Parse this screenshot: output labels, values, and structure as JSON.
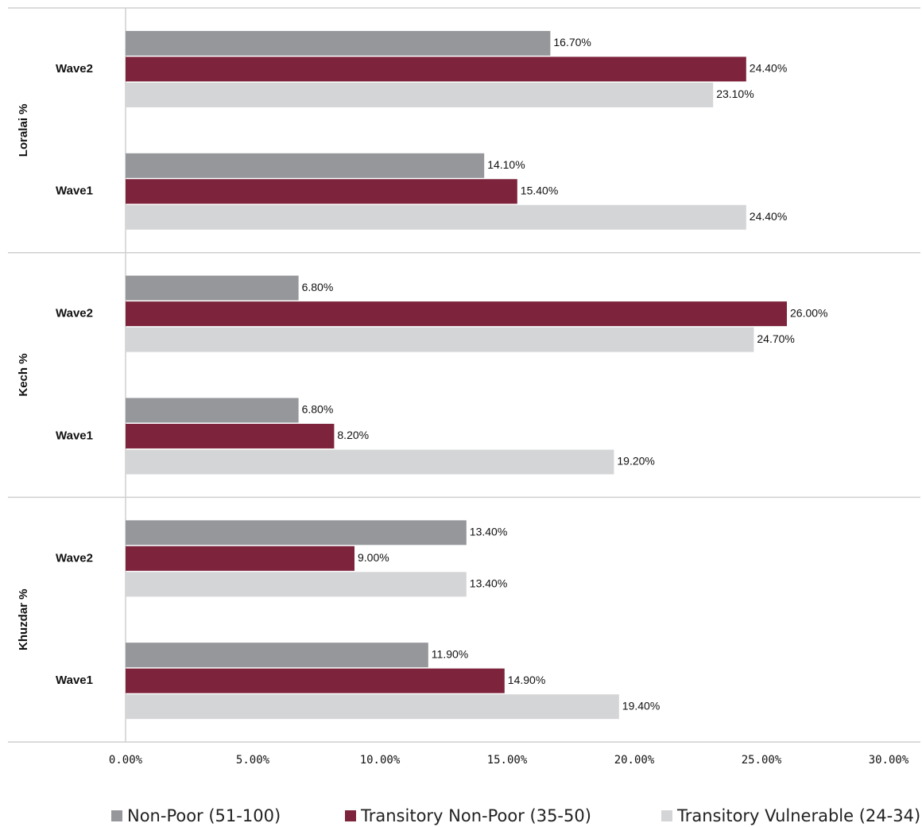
{
  "chart_data": {
    "type": "bar",
    "orientation": "horizontal",
    "xlim": [
      0,
      30
    ],
    "x_ticks": [
      "0.00%",
      "5.00%",
      "10.00%",
      "15.00%",
      "20.00%",
      "25.00%",
      "30.00%"
    ],
    "legend_position": "bottom",
    "grid": false,
    "groups": [
      {
        "label": "Loralai %",
        "categories": [
          {
            "label": "Wave2",
            "values": [
              16.7,
              24.4,
              23.1
            ],
            "labels": [
              "16.70%",
              "24.40%",
              "23.10%"
            ]
          },
          {
            "label": "Wave1",
            "values": [
              14.1,
              15.4,
              24.4
            ],
            "labels": [
              "14.10%",
              "15.40%",
              "24.40%"
            ]
          }
        ]
      },
      {
        "label": "Kech %",
        "categories": [
          {
            "label": "Wave2",
            "values": [
              6.8,
              26.0,
              24.7
            ],
            "labels": [
              "6.80%",
              "26.00%",
              "24.70%"
            ]
          },
          {
            "label": "Wave1",
            "values": [
              6.8,
              8.2,
              19.2
            ],
            "labels": [
              "6.80%",
              "8.20%",
              "19.20%"
            ]
          }
        ]
      },
      {
        "label": "Khuzdar %",
        "categories": [
          {
            "label": "Wave2",
            "values": [
              13.4,
              9.0,
              13.4
            ],
            "labels": [
              "13.40%",
              "9.00%",
              "13.40%"
            ]
          },
          {
            "label": "Wave1",
            "values": [
              11.9,
              14.9,
              19.4
            ],
            "labels": [
              "11.90%",
              "14.90%",
              "19.40%"
            ]
          }
        ]
      }
    ],
    "series": [
      {
        "name": "Non-Poor (51-100)",
        "color": "#96979b"
      },
      {
        "name": "Transitory Non-Poor (35-50)",
        "color": "#7d243c"
      },
      {
        "name": "Transitory Vulnerable (24-34)",
        "color": "#d4d5d7"
      }
    ]
  }
}
